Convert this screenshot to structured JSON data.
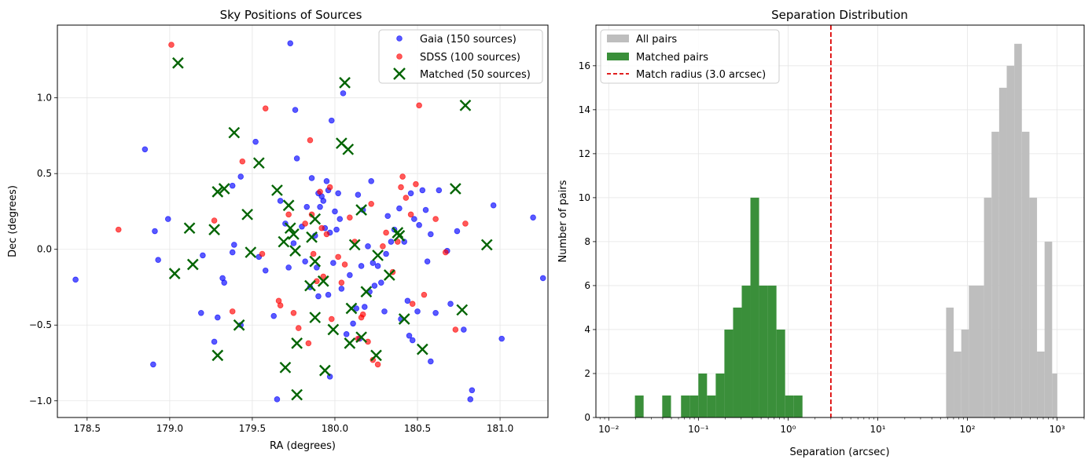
{
  "chart_data": [
    {
      "type": "scatter",
      "title": "Sky Positions of Sources",
      "xlabel": "RA (degrees)",
      "ylabel": "Dec (degrees)",
      "xlim": [
        178.32,
        181.29
      ],
      "ylim": [
        -1.11,
        1.48
      ],
      "xticks": [
        178.5,
        179.0,
        179.5,
        180.0,
        180.5,
        181.0
      ],
      "xtick_labels": [
        "178.5",
        "179.0",
        "179.5",
        "180.0",
        "180.5",
        "181.0"
      ],
      "yticks": [
        -1.0,
        -0.5,
        0.0,
        0.5,
        1.0
      ],
      "ytick_labels": [
        "−1.0",
        "−0.5",
        "0.0",
        "0.5",
        "1.0"
      ],
      "grid": true,
      "legend": "top-right",
      "series": [
        {
          "name": "Gaia (150 sources)",
          "color": "#0000ff",
          "marker": "circle",
          "points": [
            [
              178.43,
              -0.2
            ],
            [
              178.85,
              0.66
            ],
            [
              178.9,
              -0.76
            ],
            [
              178.91,
              0.12
            ],
            [
              178.93,
              -0.07
            ],
            [
              178.99,
              0.2
            ],
            [
              179.2,
              -0.04
            ],
            [
              179.19,
              -0.42
            ],
            [
              179.27,
              -0.61
            ],
            [
              179.29,
              -0.45
            ],
            [
              179.32,
              -0.19
            ],
            [
              179.33,
              -0.22
            ],
            [
              179.38,
              0.42
            ],
            [
              179.38,
              -0.02
            ],
            [
              179.39,
              0.03
            ],
            [
              179.43,
              0.48
            ],
            [
              179.43,
              -0.5
            ],
            [
              179.52,
              0.71
            ],
            [
              179.54,
              -0.05
            ],
            [
              179.58,
              -0.14
            ],
            [
              179.63,
              -0.44
            ],
            [
              179.65,
              -0.99
            ],
            [
              179.67,
              0.32
            ],
            [
              179.7,
              0.17
            ],
            [
              179.72,
              -0.12
            ],
            [
              179.73,
              1.36
            ],
            [
              179.75,
              0.04
            ],
            [
              179.76,
              0.92
            ],
            [
              179.77,
              0.6
            ],
            [
              179.8,
              0.15
            ],
            [
              179.82,
              -0.08
            ],
            [
              179.83,
              0.28
            ],
            [
              179.85,
              -0.25
            ],
            [
              179.86,
              0.47
            ],
            [
              179.88,
              0.09
            ],
            [
              179.89,
              -0.12
            ],
            [
              179.9,
              0.37
            ],
            [
              179.9,
              -0.31
            ],
            [
              179.91,
              0.28
            ],
            [
              179.92,
              0.35
            ],
            [
              179.93,
              0.32
            ],
            [
              179.94,
              0.14
            ],
            [
              179.95,
              0.45
            ],
            [
              179.96,
              0.39
            ],
            [
              179.96,
              -0.3
            ],
            [
              179.97,
              0.11
            ],
            [
              179.97,
              -0.84
            ],
            [
              179.98,
              0.85
            ],
            [
              179.99,
              -0.09
            ],
            [
              180.0,
              0.25
            ],
            [
              180.01,
              0.13
            ],
            [
              180.02,
              0.37
            ],
            [
              180.03,
              0.2
            ],
            [
              180.04,
              -0.26
            ],
            [
              180.05,
              1.03
            ],
            [
              180.07,
              -0.56
            ],
            [
              180.09,
              -0.17
            ],
            [
              180.11,
              -0.49
            ],
            [
              180.13,
              -0.39
            ],
            [
              180.14,
              0.36
            ],
            [
              180.15,
              -0.59
            ],
            [
              180.16,
              -0.11
            ],
            [
              180.17,
              0.26
            ],
            [
              180.18,
              -0.38
            ],
            [
              180.2,
              0.02
            ],
            [
              180.21,
              -0.28
            ],
            [
              180.22,
              0.45
            ],
            [
              180.23,
              -0.09
            ],
            [
              180.24,
              -0.24
            ],
            [
              180.26,
              -0.11
            ],
            [
              180.28,
              -0.22
            ],
            [
              180.3,
              -0.41
            ],
            [
              180.31,
              -0.03
            ],
            [
              180.32,
              0.22
            ],
            [
              180.34,
              0.05
            ],
            [
              180.36,
              0.13
            ],
            [
              180.39,
              0.27
            ],
            [
              180.4,
              -0.46
            ],
            [
              180.42,
              0.05
            ],
            [
              180.44,
              -0.34
            ],
            [
              180.45,
              -0.57
            ],
            [
              180.46,
              0.37
            ],
            [
              180.47,
              -0.6
            ],
            [
              180.48,
              0.2
            ],
            [
              180.5,
              -0.41
            ],
            [
              180.51,
              0.16
            ],
            [
              180.53,
              0.39
            ],
            [
              180.55,
              0.26
            ],
            [
              180.56,
              -0.08
            ],
            [
              180.58,
              -0.74
            ],
            [
              180.58,
              0.1
            ],
            [
              180.61,
              -0.42
            ],
            [
              180.63,
              0.39
            ],
            [
              180.68,
              -0.01
            ],
            [
              180.7,
              -0.36
            ],
            [
              180.74,
              0.12
            ],
            [
              180.78,
              -0.53
            ],
            [
              180.82,
              -0.99
            ],
            [
              180.83,
              -0.93
            ],
            [
              180.96,
              0.29
            ],
            [
              181.01,
              -0.59
            ],
            [
              181.2,
              0.21
            ],
            [
              181.26,
              -0.19
            ]
          ]
        },
        {
          "name": "SDSS (100 sources)",
          "color": "#ff0000",
          "marker": "circle",
          "points": [
            [
              178.69,
              0.13
            ],
            [
              179.01,
              1.35
            ],
            [
              179.27,
              0.19
            ],
            [
              179.38,
              -0.41
            ],
            [
              179.44,
              0.58
            ],
            [
              179.56,
              -0.03
            ],
            [
              179.58,
              0.93
            ],
            [
              179.66,
              -0.34
            ],
            [
              179.67,
              -0.37
            ],
            [
              179.72,
              0.23
            ],
            [
              179.75,
              -0.42
            ],
            [
              179.78,
              -0.52
            ],
            [
              179.82,
              0.17
            ],
            [
              179.84,
              -0.62
            ],
            [
              179.85,
              0.72
            ],
            [
              179.86,
              0.23
            ],
            [
              179.87,
              -0.03
            ],
            [
              179.89,
              -0.21
            ],
            [
              179.91,
              0.38
            ],
            [
              179.92,
              0.14
            ],
            [
              179.93,
              -0.18
            ],
            [
              179.95,
              0.1
            ],
            [
              179.97,
              0.41
            ],
            [
              179.98,
              -0.46
            ],
            [
              180.02,
              -0.05
            ],
            [
              180.04,
              -0.22
            ],
            [
              180.06,
              -0.1
            ],
            [
              180.09,
              0.21
            ],
            [
              180.12,
              0.05
            ],
            [
              180.14,
              -0.59
            ],
            [
              180.16,
              -0.45
            ],
            [
              180.17,
              -0.43
            ],
            [
              180.2,
              -0.61
            ],
            [
              180.22,
              0.3
            ],
            [
              180.23,
              -0.73
            ],
            [
              180.26,
              -0.76
            ],
            [
              180.29,
              0.02
            ],
            [
              180.31,
              0.11
            ],
            [
              180.35,
              -0.15
            ],
            [
              180.38,
              0.05
            ],
            [
              180.4,
              0.41
            ],
            [
              180.41,
              0.48
            ],
            [
              180.43,
              0.34
            ],
            [
              180.46,
              0.23
            ],
            [
              180.47,
              -0.36
            ],
            [
              180.49,
              0.43
            ],
            [
              180.51,
              0.95
            ],
            [
              180.54,
              -0.3
            ],
            [
              180.61,
              0.2
            ],
            [
              180.67,
              -0.02
            ],
            [
              180.73,
              -0.53
            ],
            [
              180.79,
              0.17
            ]
          ]
        },
        {
          "name": "Matched (50 sources)",
          "color": "#006400",
          "marker": "x",
          "points": [
            [
              179.05,
              1.23
            ],
            [
              179.03,
              -0.16
            ],
            [
              179.12,
              0.14
            ],
            [
              179.14,
              -0.1
            ],
            [
              179.27,
              0.13
            ],
            [
              179.29,
              0.38
            ],
            [
              179.29,
              -0.7
            ],
            [
              179.33,
              0.4
            ],
            [
              179.39,
              0.77
            ],
            [
              179.42,
              -0.5
            ],
            [
              179.47,
              0.23
            ],
            [
              179.49,
              -0.02
            ],
            [
              179.54,
              0.57
            ],
            [
              179.65,
              0.39
            ],
            [
              179.69,
              0.05
            ],
            [
              179.7,
              -0.78
            ],
            [
              179.72,
              0.29
            ],
            [
              179.73,
              0.14
            ],
            [
              179.75,
              0.1
            ],
            [
              179.76,
              -0.01
            ],
            [
              179.77,
              -0.62
            ],
            [
              179.77,
              -0.96
            ],
            [
              179.85,
              -0.24
            ],
            [
              179.86,
              0.08
            ],
            [
              179.88,
              0.2
            ],
            [
              179.88,
              -0.08
            ],
            [
              179.88,
              -0.45
            ],
            [
              179.93,
              -0.21
            ],
            [
              179.94,
              -0.8
            ],
            [
              179.99,
              -0.53
            ],
            [
              180.04,
              0.7
            ],
            [
              180.06,
              1.1
            ],
            [
              180.08,
              0.66
            ],
            [
              180.09,
              -0.62
            ],
            [
              180.1,
              -0.39
            ],
            [
              180.12,
              0.03
            ],
            [
              180.16,
              0.26
            ],
            [
              180.16,
              -0.58
            ],
            [
              180.19,
              -0.28
            ],
            [
              180.25,
              -0.7
            ],
            [
              180.26,
              -0.04
            ],
            [
              180.33,
              -0.17
            ],
            [
              180.38,
              0.11
            ],
            [
              180.39,
              0.09
            ],
            [
              180.42,
              -0.46
            ],
            [
              180.53,
              -0.66
            ],
            [
              180.73,
              0.4
            ],
            [
              180.77,
              -0.4
            ],
            [
              180.79,
              0.95
            ],
            [
              180.92,
              0.03
            ]
          ]
        }
      ]
    },
    {
      "type": "bar",
      "title": "Separation Distribution",
      "xlabel": "Separation (arcsec)",
      "ylabel": "Number of pairs",
      "xscale": "log",
      "xlim": [
        0.0072,
        2000
      ],
      "ylim": [
        0,
        17.85
      ],
      "xticks": [
        0.01,
        0.1,
        1,
        10,
        100,
        1000
      ],
      "xtick_labels": [
        "10⁻²",
        "10⁻¹",
        "10⁰",
        "10¹",
        "10²",
        "10³"
      ],
      "yticks": [
        0,
        2,
        4,
        6,
        8,
        10,
        12,
        14,
        16
      ],
      "ytick_labels": [
        "0",
        "2",
        "4",
        "6",
        "8",
        "10",
        "12",
        "14",
        "16"
      ],
      "grid": true,
      "legend": "top-left",
      "series": [
        {
          "name": "All pairs",
          "color": "#bebebe",
          "bins": [
            [
              57.8,
              70.2,
              5
            ],
            [
              70.2,
              85.3,
              3
            ],
            [
              85.3,
              103.6,
              4
            ],
            [
              103.6,
              125.9,
              6
            ],
            [
              125.9,
              152.9,
              6
            ],
            [
              152.9,
              185.7,
              10
            ],
            [
              185.7,
              225.6,
              13
            ],
            [
              225.6,
              274.0,
              15
            ],
            [
              274.0,
              332.8,
              16
            ],
            [
              332.8,
              404.3,
              17
            ],
            [
              404.3,
              491.1,
              13
            ],
            [
              491.1,
              596.5,
              10
            ],
            [
              596.5,
              724.5,
              3
            ],
            [
              724.5,
              880.1,
              8
            ],
            [
              880.1,
              1003,
              2
            ]
          ]
        },
        {
          "name": "Matched pairs",
          "color": "#3a8f3a",
          "bins": [
            [
              0.0196,
              0.0245,
              1
            ],
            [
              0.0395,
              0.0495,
              1
            ],
            [
              0.064,
              0.08,
              1
            ],
            [
              0.08,
              0.0999,
              1
            ],
            [
              0.0999,
              0.1248,
              2
            ],
            [
              0.1248,
              0.156,
              1
            ],
            [
              0.156,
              0.1949,
              2
            ],
            [
              0.1949,
              0.2436,
              4
            ],
            [
              0.2436,
              0.3043,
              5
            ],
            [
              0.3043,
              0.3802,
              6
            ],
            [
              0.3802,
              0.4751,
              10
            ],
            [
              0.4751,
              0.5937,
              6
            ],
            [
              0.5937,
              0.7418,
              6
            ],
            [
              0.7418,
              0.9269,
              4
            ],
            [
              0.9269,
              1.158,
              1
            ],
            [
              1.158,
              1.447,
              1
            ]
          ]
        },
        {
          "name": "Match radius (3.0 arcsec)",
          "color": "#dd0000",
          "type": "vline",
          "x": 3.0
        }
      ]
    }
  ]
}
